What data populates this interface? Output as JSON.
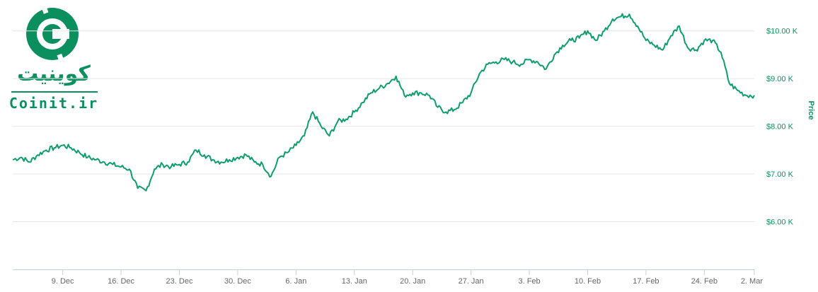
{
  "logo": {
    "name_fa": "کوینیت",
    "name_en": "Coinit.ir",
    "icon": "coinit-logo-icon",
    "color": "#0b8f5f"
  },
  "colors": {
    "line": "#0f9d6e",
    "grid": "#e6e6e6",
    "axis": "#c0d0e0",
    "ytick": "#0b8f5f"
  },
  "chart_data": {
    "type": "line",
    "ylabel": "Price",
    "ylim": [
      5000,
      10500
    ],
    "y_ticks": [
      {
        "value": 6000,
        "label": "$6.00 K"
      },
      {
        "value": 7000,
        "label": "$7.00 K"
      },
      {
        "value": 8000,
        "label": "$8.00 K"
      },
      {
        "value": 9000,
        "label": "$9.00 K"
      },
      {
        "value": 10000,
        "label": "$10.00 K"
      }
    ],
    "x_range": [
      "2017-12-03",
      "2018-03-02"
    ],
    "x_ticks": [
      {
        "date": "2017-12-09",
        "label": "9. Dec"
      },
      {
        "date": "2017-12-16",
        "label": "16. Dec"
      },
      {
        "date": "2017-12-23",
        "label": "23. Dec"
      },
      {
        "date": "2017-12-30",
        "label": "30. Dec"
      },
      {
        "date": "2018-01-06",
        "label": "6. Jan"
      },
      {
        "date": "2018-01-13",
        "label": "13. Jan"
      },
      {
        "date": "2018-01-20",
        "label": "20. Jan"
      },
      {
        "date": "2018-01-27",
        "label": "27. Jan"
      },
      {
        "date": "2018-02-03",
        "label": "3. Feb"
      },
      {
        "date": "2018-02-10",
        "label": "10. Feb"
      },
      {
        "date": "2018-02-17",
        "label": "17. Feb"
      },
      {
        "date": "2018-02-24",
        "label": "24. Feb"
      },
      {
        "date": "2018-03-02",
        "label": "2. Mar"
      }
    ],
    "series": [
      {
        "x": [
          "2017-12-03",
          "2017-12-04",
          "2017-12-05",
          "2017-12-06",
          "2017-12-07",
          "2017-12-08",
          "2017-12-09",
          "2017-12-10",
          "2017-12-11",
          "2017-12-12",
          "2017-12-13",
          "2017-12-14",
          "2017-12-15",
          "2017-12-16",
          "2017-12-17",
          "2017-12-18",
          "2017-12-19",
          "2017-12-20",
          "2017-12-21",
          "2017-12-22",
          "2017-12-23",
          "2017-12-24",
          "2017-12-25",
          "2017-12-26",
          "2017-12-27",
          "2017-12-28",
          "2017-12-29",
          "2017-12-30",
          "2017-12-31",
          "2018-01-01",
          "2018-01-02",
          "2018-01-03",
          "2018-01-04",
          "2018-01-05",
          "2018-01-06",
          "2018-01-07",
          "2018-01-08",
          "2018-01-09",
          "2018-01-10",
          "2018-01-11",
          "2018-01-12",
          "2018-01-13",
          "2018-01-14",
          "2018-01-15",
          "2018-01-16",
          "2018-01-17",
          "2018-01-18",
          "2018-01-19",
          "2018-01-20",
          "2018-01-21",
          "2018-01-22",
          "2018-01-23",
          "2018-01-24",
          "2018-01-25",
          "2018-01-26",
          "2018-01-27",
          "2018-01-28",
          "2018-01-29",
          "2018-01-30",
          "2018-01-31",
          "2018-02-01",
          "2018-02-02",
          "2018-02-03",
          "2018-02-04",
          "2018-02-05",
          "2018-02-06",
          "2018-02-07",
          "2018-02-08",
          "2018-02-09",
          "2018-02-10",
          "2018-02-11",
          "2018-02-12",
          "2018-02-13",
          "2018-02-14",
          "2018-02-15",
          "2018-02-16",
          "2018-02-17",
          "2018-02-18",
          "2018-02-19",
          "2018-02-20",
          "2018-02-21",
          "2018-02-22",
          "2018-02-23",
          "2018-02-24",
          "2018-02-25",
          "2018-02-26",
          "2018-02-27",
          "2018-02-28",
          "2018-03-01",
          "2018-03-02"
        ],
        "values": [
          7300,
          7350,
          7250,
          7400,
          7500,
          7550,
          7600,
          7550,
          7450,
          7350,
          7300,
          7250,
          7200,
          7150,
          7100,
          6700,
          6650,
          7100,
          7200,
          7150,
          7200,
          7250,
          7500,
          7400,
          7300,
          7250,
          7300,
          7350,
          7400,
          7250,
          7200,
          6950,
          7350,
          7450,
          7600,
          7800,
          8300,
          8000,
          7800,
          8100,
          8150,
          8300,
          8500,
          8700,
          8800,
          8900,
          9050,
          8650,
          8700,
          8700,
          8650,
          8400,
          8300,
          8350,
          8500,
          8700,
          9100,
          9300,
          9350,
          9400,
          9350,
          9300,
          9400,
          9350,
          9200,
          9500,
          9700,
          9800,
          9850,
          10000,
          9800,
          10000,
          10250,
          10300,
          10350,
          10100,
          9800,
          9700,
          9600,
          9900,
          10100,
          9650,
          9600,
          9800,
          9800,
          9550,
          8900,
          8750,
          8650,
          8650
        ]
      }
    ]
  }
}
